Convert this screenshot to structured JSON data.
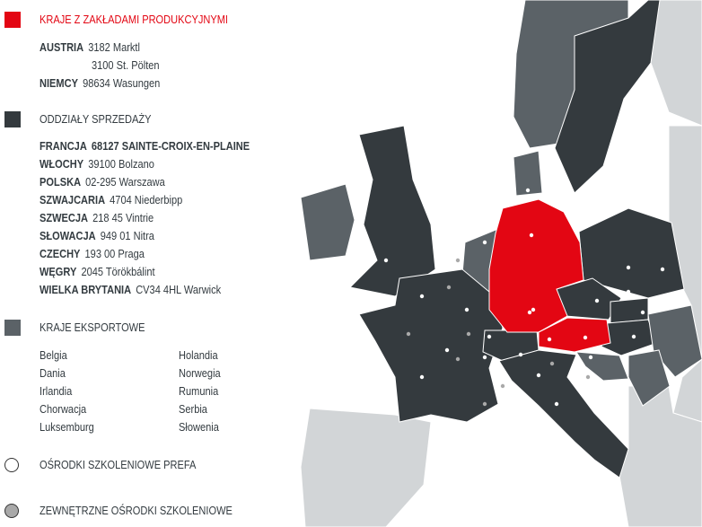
{
  "colors": {
    "production": "#e30613",
    "sales": "#343a3e",
    "export": "#5b6267",
    "other": "#d2d5d7",
    "sea": "#ffffff"
  },
  "legend": {
    "production": {
      "title": "KRAJE Z ZAKŁADAMI PRODUKCYJNYMI",
      "entries": [
        {
          "country": "AUSTRIA",
          "places": [
            "3182 Marktl",
            "3100 St. Pölten"
          ]
        },
        {
          "country": "NIEMCY",
          "places": [
            "98634 Wasungen"
          ]
        }
      ]
    },
    "sales": {
      "title": "ODDZIAŁY SPRZEDAŻY",
      "entries": [
        {
          "country": "FRANCJA",
          "place": "68127 SAINTE-CROIX-EN-PLAINE"
        },
        {
          "country": "WŁOCHY",
          "place": "39100 Bolzano"
        },
        {
          "country": "POLSKA",
          "place": "02-295 Warszawa"
        },
        {
          "country": "SZWAJCARIA",
          "place": "4704 Niederbipp"
        },
        {
          "country": "SZWECJA",
          "place": "218 45 Vintrie"
        },
        {
          "country": "SŁOWACJA",
          "place": "949 01 Nitra"
        },
        {
          "country": "CZECHY",
          "place": "193 00 Praga"
        },
        {
          "country": "WĘGRY",
          "place": "2045 Törökbálint"
        },
        {
          "country": "WIELKA BRYTANIA",
          "place": "CV34 4HL Warwick"
        }
      ]
    },
    "export": {
      "title": "KRAJE EKSPORTOWE",
      "col1": [
        "Belgia",
        "Dania",
        "Irlandia",
        "Chorwacja",
        "Luksemburg"
      ],
      "col2": [
        "Holandia",
        "Norwegia",
        "Rumunia",
        "Serbia",
        "Słowenia"
      ]
    },
    "prefa_training": {
      "title": "OŚRODKI SZKOLENIOWE PREFA",
      "icon": "white-circle-icon"
    },
    "external_training": {
      "title": "ZEWNĘTRZNE OŚRODKI SZKOLENIOWE",
      "icon": "gray-circle-icon"
    }
  }
}
